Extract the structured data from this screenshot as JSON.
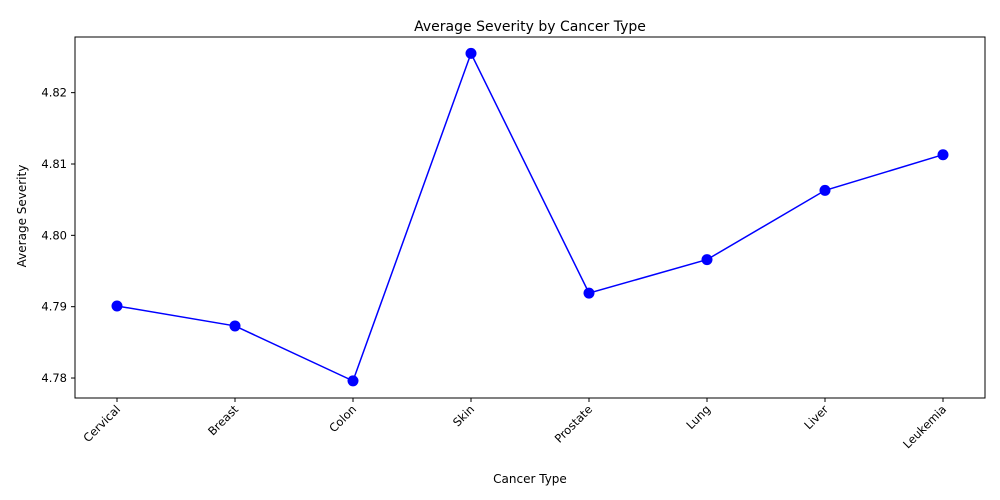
{
  "chart_data": {
    "type": "line",
    "title": "Average Severity by Cancer Type",
    "xlabel": "Cancer Type",
    "ylabel": "Average Severity",
    "categories": [
      "Cervical",
      "Breast",
      "Colon",
      "Skin",
      "Prostate",
      "Lung",
      "Liver",
      "Leukemia"
    ],
    "series": [
      {
        "values": [
          4.7901,
          4.7873,
          4.7796,
          4.8255,
          4.7919,
          4.7966,
          4.8063,
          4.8113
        ],
        "color": "#0000ff",
        "marker": "circle"
      }
    ],
    "ylim": [
      4.7772,
      4.8278
    ],
    "yticks": [
      4.78,
      4.79,
      4.8,
      4.81,
      4.82
    ],
    "ytick_labels": [
      "4.78",
      "4.79",
      "4.80",
      "4.81",
      "4.82"
    ],
    "grid": false,
    "legend": "none"
  }
}
